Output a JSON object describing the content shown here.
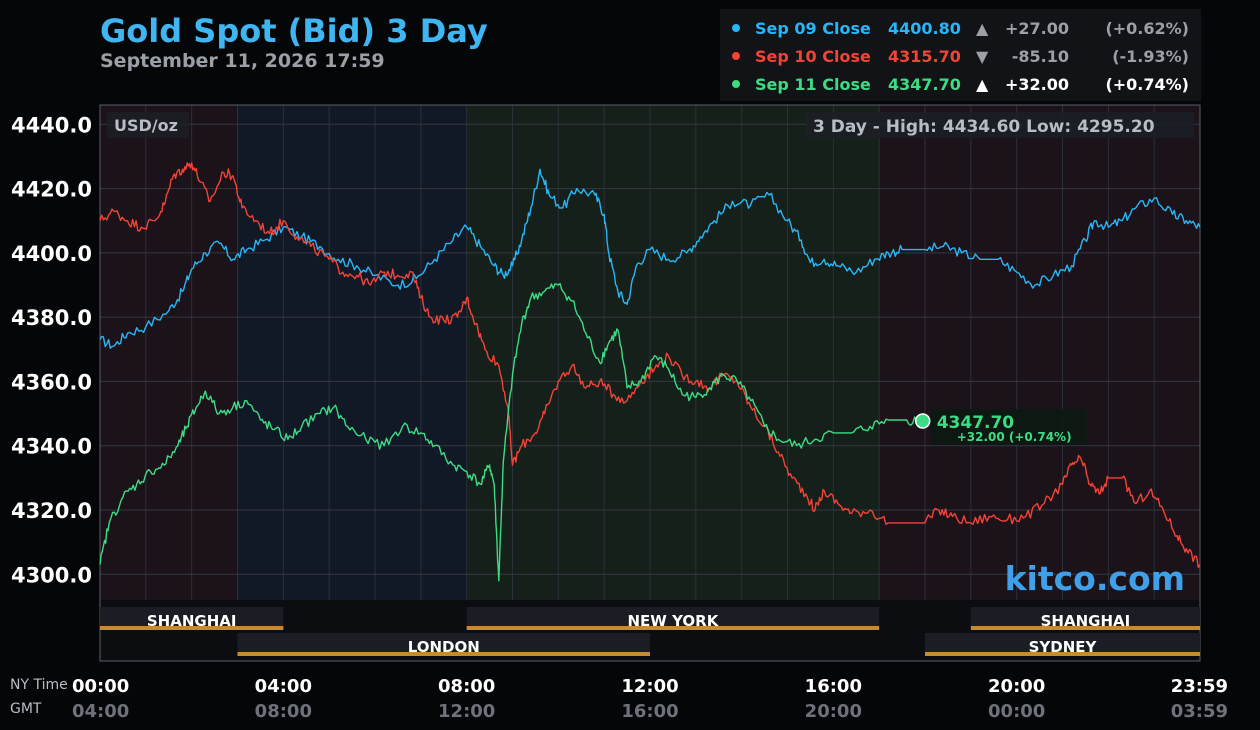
{
  "header": {
    "title": "Gold Spot (Bid) 3 Day",
    "timestamp": "September 11, 2026 17:59"
  },
  "legend": [
    {
      "label": "Sep 09 Close",
      "price": "4400.80",
      "arrow": "▲",
      "change": "+27.00",
      "pct": "(+0.62%)",
      "color": "#29b6f6",
      "muted": true
    },
    {
      "label": "Sep 10 Close",
      "price": "4315.70",
      "arrow": "▼",
      "change": "-85.10",
      "pct": "(-1.93%)",
      "color": "#f44336",
      "muted": true
    },
    {
      "label": "Sep 11 Close",
      "price": "4347.70",
      "arrow": "▲",
      "change": "+32.00",
      "pct": "(+0.74%)",
      "color": "#3ddc84",
      "muted": false
    }
  ],
  "unit_label": "USD/oz",
  "range_box": "3 Day - High: 4434.60  Low: 4295.20",
  "current": {
    "price": "4347.70",
    "change": "+32.00 (+0.74%)",
    "x": 17.95,
    "y": 4347.7
  },
  "watermark": "kitco.com",
  "sessions": [
    {
      "name": "SHANGHAI",
      "start": 0,
      "end": 4,
      "row": 1
    },
    {
      "name": "NEW YORK",
      "start": 8,
      "end": 17,
      "row": 1
    },
    {
      "name": "SHANGHAI",
      "start": 19,
      "end": 24,
      "row": 1
    },
    {
      "name": "LONDON",
      "start": 3,
      "end": 12,
      "row": 2
    },
    {
      "name": "SYDNEY",
      "start": 18,
      "end": 24,
      "row": 2
    }
  ],
  "time_row_labels": {
    "ny": "NY Time",
    "gmt": "GMT"
  },
  "chart_data": {
    "type": "line",
    "xlim": [
      0,
      24
    ],
    "ylim": [
      4292,
      4446
    ],
    "yticks": [
      4300,
      4320,
      4340,
      4360,
      4380,
      4400,
      4420,
      4440
    ],
    "ytick_labels": [
      "4300.0",
      "4320.0",
      "4340.0",
      "4360.0",
      "4380.0",
      "4400.0",
      "4420.0",
      "4440.0"
    ],
    "xticks": [
      {
        "x": 0,
        "ny": "00:00",
        "gmt": "04:00"
      },
      {
        "x": 4,
        "ny": "04:00",
        "gmt": "08:00"
      },
      {
        "x": 8,
        "ny": "08:00",
        "gmt": "12:00"
      },
      {
        "x": 12,
        "ny": "12:00",
        "gmt": "16:00"
      },
      {
        "x": 16,
        "ny": "16:00",
        "gmt": "20:00"
      },
      {
        "x": 20,
        "ny": "20:00",
        "gmt": "00:00"
      },
      {
        "x": 23.98,
        "ny": "23:59",
        "gmt": "03:59"
      }
    ],
    "series": [
      {
        "name": "Sep 09 Close",
        "color": "#29b6f6",
        "points": [
          [
            0,
            4373
          ],
          [
            0.3,
            4371
          ],
          [
            0.6,
            4375
          ],
          [
            1.0,
            4377
          ],
          [
            1.5,
            4382
          ],
          [
            1.8,
            4388
          ],
          [
            2.0,
            4395
          ],
          [
            2.3,
            4400
          ],
          [
            2.6,
            4403
          ],
          [
            2.9,
            4398
          ],
          [
            3.2,
            4401
          ],
          [
            3.6,
            4404
          ],
          [
            4.0,
            4408
          ],
          [
            4.4,
            4405
          ],
          [
            4.8,
            4402
          ],
          [
            5.2,
            4398
          ],
          [
            5.6,
            4396
          ],
          [
            6.0,
            4393
          ],
          [
            6.5,
            4390
          ],
          [
            6.9,
            4392
          ],
          [
            7.3,
            4398
          ],
          [
            7.7,
            4404
          ],
          [
            8.0,
            4408
          ],
          [
            8.3,
            4402
          ],
          [
            8.6,
            4396
          ],
          [
            8.8,
            4393
          ],
          [
            9.0,
            4396
          ],
          [
            9.2,
            4404
          ],
          [
            9.4,
            4414
          ],
          [
            9.6,
            4426
          ],
          [
            9.8,
            4418
          ],
          [
            10.1,
            4414
          ],
          [
            10.4,
            4420
          ],
          [
            10.8,
            4418
          ],
          [
            11.0,
            4412
          ],
          [
            11.1,
            4400
          ],
          [
            11.3,
            4388
          ],
          [
            11.5,
            4384
          ],
          [
            11.7,
            4396
          ],
          [
            12.0,
            4401
          ],
          [
            12.4,
            4398
          ],
          [
            12.8,
            4400
          ],
          [
            13.1,
            4405
          ],
          [
            13.4,
            4410
          ],
          [
            13.8,
            4416
          ],
          [
            14.2,
            4415
          ],
          [
            14.6,
            4418
          ],
          [
            15.0,
            4410
          ],
          [
            15.3,
            4404
          ],
          [
            15.5,
            4397
          ],
          [
            15.8,
            4398
          ],
          [
            16.1,
            4396
          ],
          [
            16.5,
            4394
          ],
          [
            16.9,
            4398
          ],
          [
            17.2,
            4400
          ],
          [
            17.5,
            4401
          ],
          [
            18.0,
            4401
          ],
          [
            18.4,
            4402
          ],
          [
            18.8,
            4400
          ],
          [
            19.2,
            4398
          ],
          [
            19.6,
            4398
          ],
          [
            20.0,
            4394
          ],
          [
            20.4,
            4390
          ],
          [
            20.8,
            4393
          ],
          [
            21.2,
            4396
          ],
          [
            21.5,
            4404
          ],
          [
            21.7,
            4410
          ],
          [
            22.0,
            4408
          ],
          [
            22.3,
            4410
          ],
          [
            22.6,
            4414
          ],
          [
            23.0,
            4417
          ],
          [
            23.4,
            4412
          ],
          [
            23.7,
            4410
          ],
          [
            24.0,
            4408
          ]
        ]
      },
      {
        "name": "Sep 10 Close",
        "color": "#f44336",
        "points": [
          [
            0,
            4410
          ],
          [
            0.3,
            4413
          ],
          [
            0.6,
            4410
          ],
          [
            0.9,
            4408
          ],
          [
            1.2,
            4410
          ],
          [
            1.4,
            4415
          ],
          [
            1.6,
            4424
          ],
          [
            1.8,
            4426
          ],
          [
            2.0,
            4428
          ],
          [
            2.2,
            4422
          ],
          [
            2.4,
            4416
          ],
          [
            2.7,
            4425
          ],
          [
            2.9,
            4424
          ],
          [
            3.1,
            4414
          ],
          [
            3.4,
            4410
          ],
          [
            3.7,
            4406
          ],
          [
            4.0,
            4410
          ],
          [
            4.3,
            4405
          ],
          [
            4.6,
            4402
          ],
          [
            5.0,
            4398
          ],
          [
            5.3,
            4394
          ],
          [
            5.6,
            4393
          ],
          [
            5.9,
            4390
          ],
          [
            6.2,
            4394
          ],
          [
            6.5,
            4393
          ],
          [
            6.8,
            4394
          ],
          [
            7.0,
            4386
          ],
          [
            7.2,
            4380
          ],
          [
            7.5,
            4379
          ],
          [
            7.8,
            4380
          ],
          [
            8.0,
            4386
          ],
          [
            8.2,
            4378
          ],
          [
            8.4,
            4370
          ],
          [
            8.7,
            4365
          ],
          [
            8.9,
            4352
          ],
          [
            9.0,
            4334
          ],
          [
            9.2,
            4340
          ],
          [
            9.5,
            4344
          ],
          [
            9.7,
            4350
          ],
          [
            10.0,
            4360
          ],
          [
            10.3,
            4365
          ],
          [
            10.6,
            4358
          ],
          [
            10.9,
            4360
          ],
          [
            11.2,
            4356
          ],
          [
            11.5,
            4354
          ],
          [
            11.8,
            4360
          ],
          [
            12.1,
            4364
          ],
          [
            12.4,
            4368
          ],
          [
            12.7,
            4362
          ],
          [
            13.0,
            4360
          ],
          [
            13.3,
            4358
          ],
          [
            13.6,
            4362
          ],
          [
            13.9,
            4360
          ],
          [
            14.2,
            4352
          ],
          [
            14.5,
            4346
          ],
          [
            14.8,
            4338
          ],
          [
            15.1,
            4330
          ],
          [
            15.4,
            4325
          ],
          [
            15.6,
            4320
          ],
          [
            15.8,
            4326
          ],
          [
            16.1,
            4322
          ],
          [
            16.4,
            4319
          ],
          [
            16.8,
            4320
          ],
          [
            17.2,
            4316
          ],
          [
            17.6,
            4316
          ],
          [
            18.0,
            4316
          ],
          [
            18.3,
            4320
          ],
          [
            18.6,
            4318
          ],
          [
            19.0,
            4316
          ],
          [
            19.4,
            4318
          ],
          [
            19.8,
            4317
          ],
          [
            20.2,
            4318
          ],
          [
            20.6,
            4322
          ],
          [
            21.0,
            4328
          ],
          [
            21.2,
            4334
          ],
          [
            21.4,
            4336
          ],
          [
            21.6,
            4328
          ],
          [
            21.8,
            4325
          ],
          [
            22.0,
            4330
          ],
          [
            22.3,
            4330
          ],
          [
            22.6,
            4322
          ],
          [
            22.9,
            4326
          ],
          [
            23.2,
            4320
          ],
          [
            23.5,
            4312
          ],
          [
            23.7,
            4308
          ],
          [
            24.0,
            4303
          ]
        ]
      },
      {
        "name": "Sep 11 Close",
        "color": "#3ddc84",
        "points": [
          [
            0,
            4303
          ],
          [
            0.2,
            4316
          ],
          [
            0.5,
            4324
          ],
          [
            0.8,
            4328
          ],
          [
            1.1,
            4332
          ],
          [
            1.4,
            4334
          ],
          [
            1.7,
            4340
          ],
          [
            1.9,
            4346
          ],
          [
            2.1,
            4352
          ],
          [
            2.3,
            4357
          ],
          [
            2.6,
            4350
          ],
          [
            2.9,
            4352
          ],
          [
            3.2,
            4354
          ],
          [
            3.5,
            4348
          ],
          [
            3.8,
            4345
          ],
          [
            4.1,
            4342
          ],
          [
            4.4,
            4346
          ],
          [
            4.8,
            4350
          ],
          [
            5.1,
            4352
          ],
          [
            5.4,
            4346
          ],
          [
            5.8,
            4342
          ],
          [
            6.2,
            4340
          ],
          [
            6.6,
            4346
          ],
          [
            7.0,
            4344
          ],
          [
            7.3,
            4340
          ],
          [
            7.7,
            4334
          ],
          [
            8.0,
            4332
          ],
          [
            8.3,
            4328
          ],
          [
            8.5,
            4334
          ],
          [
            8.6,
            4328
          ],
          [
            8.7,
            4298
          ],
          [
            8.8,
            4335
          ],
          [
            9.0,
            4362
          ],
          [
            9.2,
            4378
          ],
          [
            9.4,
            4386
          ],
          [
            9.7,
            4388
          ],
          [
            10.0,
            4390
          ],
          [
            10.3,
            4385
          ],
          [
            10.6,
            4375
          ],
          [
            10.9,
            4366
          ],
          [
            11.1,
            4372
          ],
          [
            11.3,
            4376
          ],
          [
            11.5,
            4358
          ],
          [
            11.8,
            4360
          ],
          [
            12.1,
            4368
          ],
          [
            12.4,
            4364
          ],
          [
            12.7,
            4356
          ],
          [
            13.0,
            4355
          ],
          [
            13.3,
            4358
          ],
          [
            13.6,
            4362
          ],
          [
            13.9,
            4360
          ],
          [
            14.2,
            4354
          ],
          [
            14.5,
            4346
          ],
          [
            14.8,
            4342
          ],
          [
            15.2,
            4340
          ],
          [
            15.6,
            4342
          ],
          [
            16.0,
            4344
          ],
          [
            16.4,
            4344
          ],
          [
            16.8,
            4346
          ],
          [
            17.2,
            4348
          ],
          [
            17.6,
            4348
          ],
          [
            17.95,
            4347.7
          ]
        ]
      }
    ]
  }
}
